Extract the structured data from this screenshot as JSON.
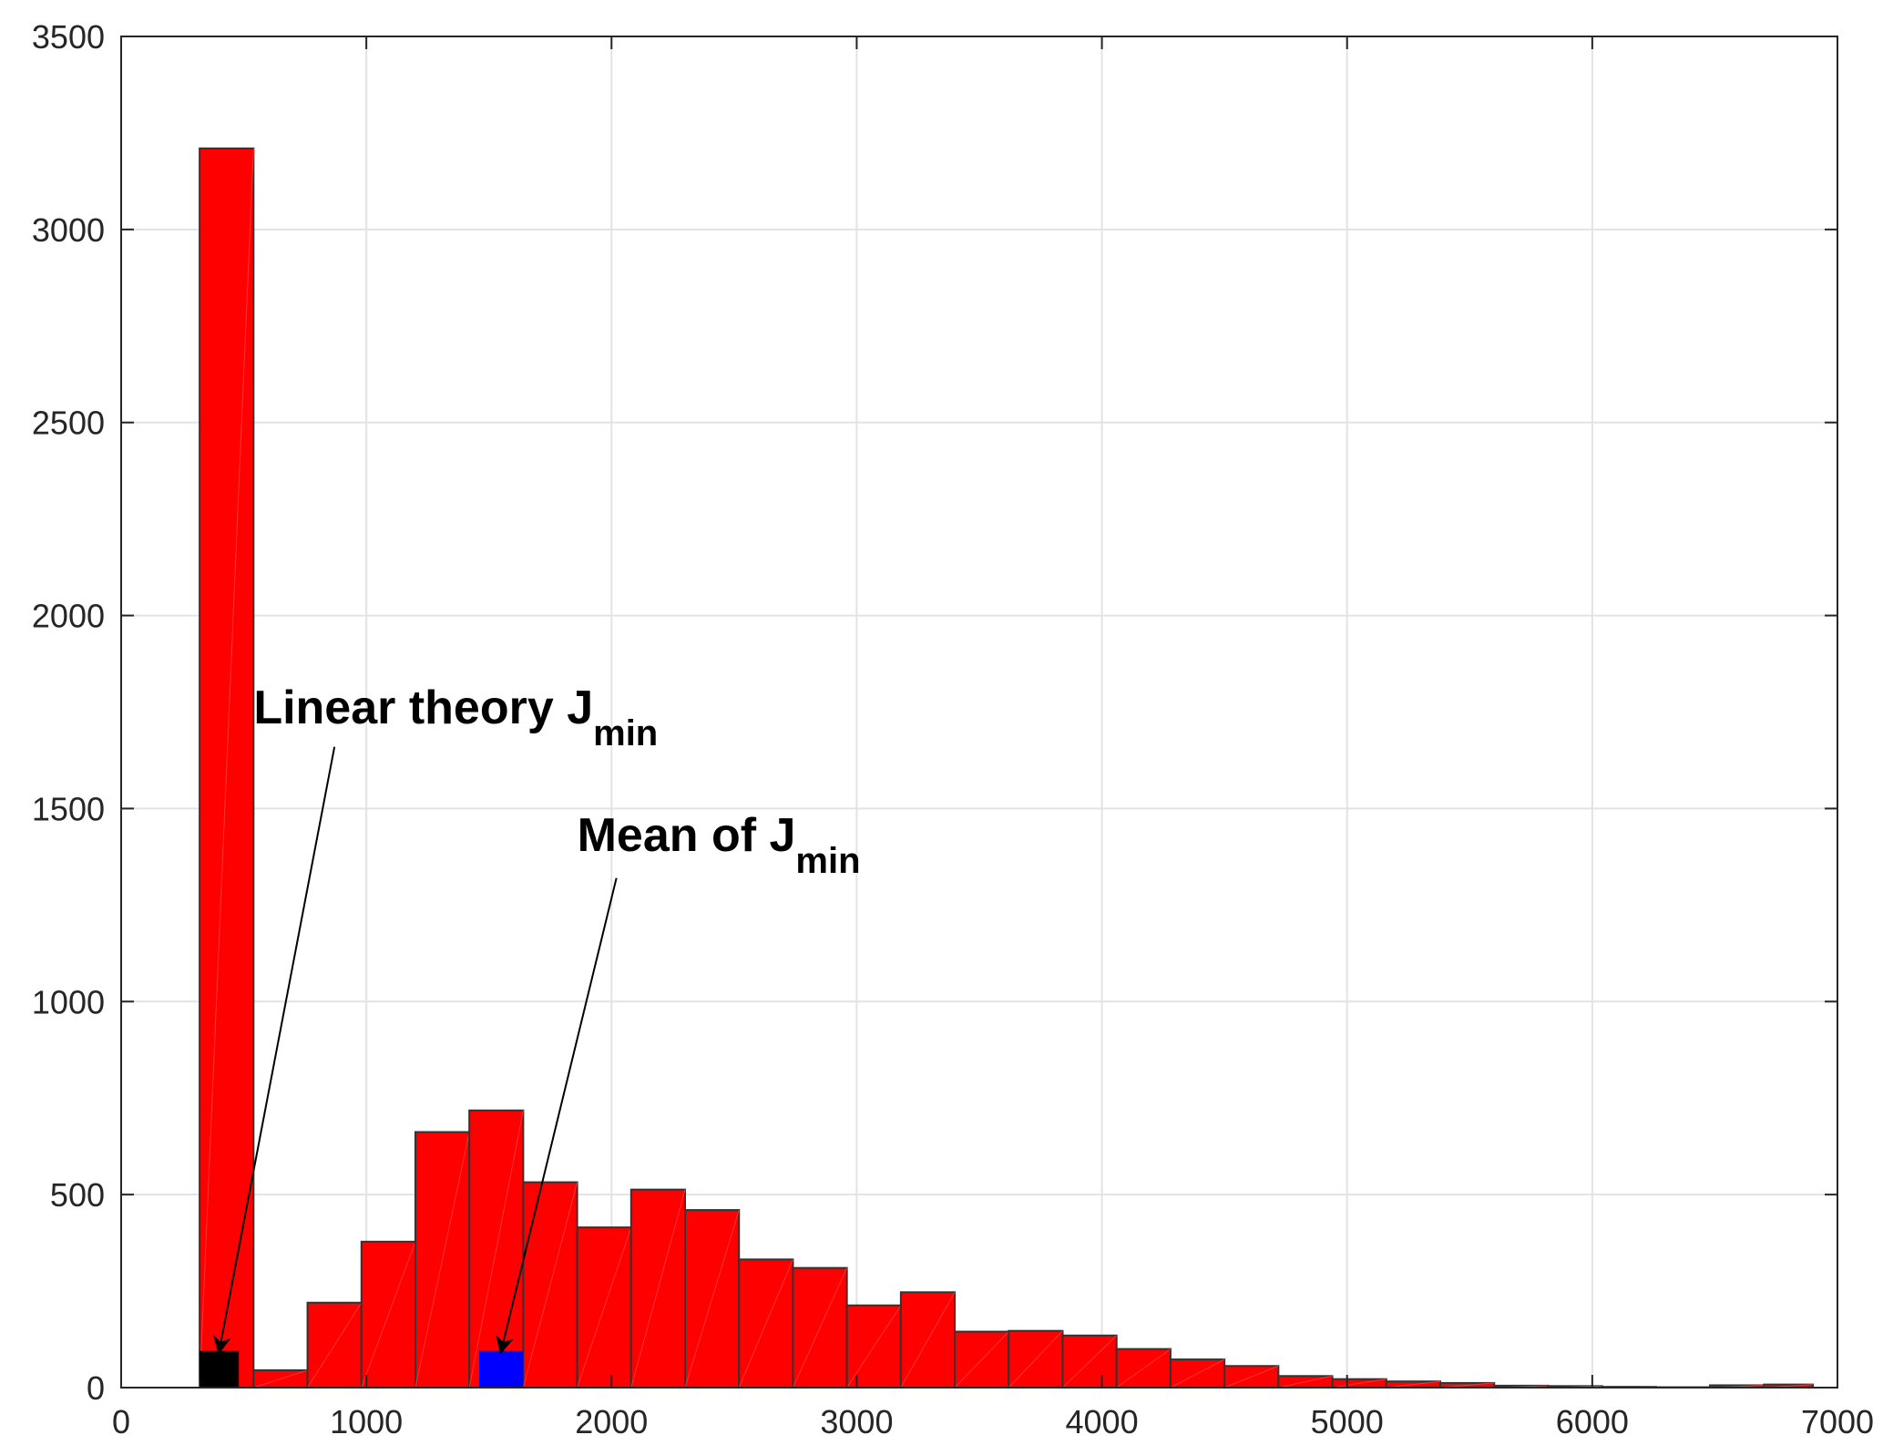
{
  "chart_data": {
    "type": "bar",
    "subtype": "histogram",
    "title": "",
    "xlabel": "",
    "ylabel": "",
    "xlim": [
      0,
      7000
    ],
    "ylim": [
      0,
      3500
    ],
    "xticks": [
      0,
      1000,
      2000,
      3000,
      4000,
      5000,
      6000,
      7000
    ],
    "yticks": [
      0,
      500,
      1000,
      1500,
      2000,
      2500,
      3000,
      3500
    ],
    "grid": true,
    "bar_color": "#ff0000",
    "bins": [
      {
        "x0": 320,
        "x1": 540,
        "count": 3210
      },
      {
        "x0": 540,
        "x1": 760,
        "count": 45
      },
      {
        "x0": 760,
        "x1": 980,
        "count": 220
      },
      {
        "x0": 980,
        "x1": 1200,
        "count": 378
      },
      {
        "x0": 1200,
        "x1": 1420,
        "count": 662
      },
      {
        "x0": 1420,
        "x1": 1640,
        "count": 718
      },
      {
        "x0": 1640,
        "x1": 1860,
        "count": 532
      },
      {
        "x0": 1860,
        "x1": 2080,
        "count": 415
      },
      {
        "x0": 2080,
        "x1": 2300,
        "count": 513
      },
      {
        "x0": 2300,
        "x1": 2520,
        "count": 460
      },
      {
        "x0": 2520,
        "x1": 2740,
        "count": 332
      },
      {
        "x0": 2740,
        "x1": 2960,
        "count": 310
      },
      {
        "x0": 2960,
        "x1": 3180,
        "count": 213
      },
      {
        "x0": 3180,
        "x1": 3400,
        "count": 247
      },
      {
        "x0": 3400,
        "x1": 3620,
        "count": 145
      },
      {
        "x0": 3620,
        "x1": 3840,
        "count": 147
      },
      {
        "x0": 3840,
        "x1": 4060,
        "count": 135
      },
      {
        "x0": 4060,
        "x1": 4280,
        "count": 100
      },
      {
        "x0": 4280,
        "x1": 4500,
        "count": 73
      },
      {
        "x0": 4500,
        "x1": 4720,
        "count": 56
      },
      {
        "x0": 4720,
        "x1": 4940,
        "count": 30
      },
      {
        "x0": 4940,
        "x1": 5160,
        "count": 22
      },
      {
        "x0": 5160,
        "x1": 5380,
        "count": 16
      },
      {
        "x0": 5380,
        "x1": 5600,
        "count": 12
      },
      {
        "x0": 5600,
        "x1": 5820,
        "count": 5
      },
      {
        "x0": 5820,
        "x1": 6040,
        "count": 4
      },
      {
        "x0": 6040,
        "x1": 6260,
        "count": 2
      },
      {
        "x0": 6260,
        "x1": 6480,
        "count": 1
      },
      {
        "x0": 6480,
        "x1": 6700,
        "count": 6
      },
      {
        "x0": 6700,
        "x1": 6900,
        "count": 8
      }
    ],
    "markers": [
      {
        "name": "linear-theory",
        "x0": 320,
        "x1": 480,
        "count": 95,
        "color": "#000000"
      },
      {
        "name": "mean",
        "x0": 1460,
        "x1": 1640,
        "count": 95,
        "color": "#0000ff"
      }
    ],
    "annotations": [
      {
        "text": "Linear theory J",
        "sub": "min",
        "text_x": 540,
        "text_y": 1720,
        "line_from": [
          870,
          1660
        ],
        "line_to": [
          400,
          95
        ]
      },
      {
        "text": "Mean of J",
        "sub": "min",
        "text_x": 1860,
        "text_y": 1390,
        "line_from": [
          2020,
          1320
        ],
        "line_to": [
          1550,
          95
        ]
      }
    ]
  }
}
